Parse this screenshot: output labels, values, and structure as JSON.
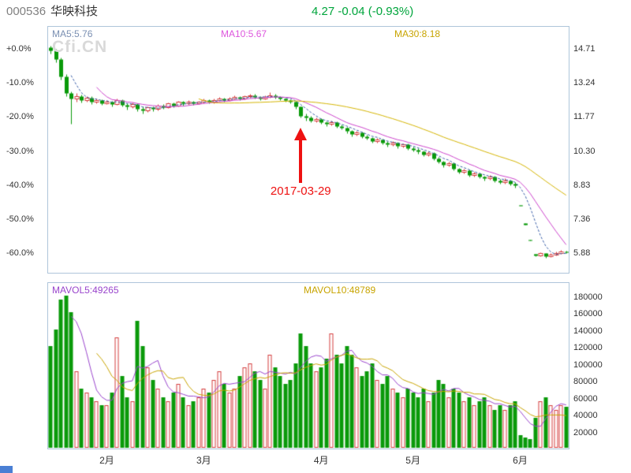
{
  "header": {
    "stock_code": "000536",
    "stock_name": "华映科技",
    "quote": "4.27 -0.04 (-0.93%)",
    "quote_color": "#00a53c"
  },
  "watermark": "Cfi.CN",
  "main_chart": {
    "ma_labels": [
      {
        "text": "MA5:5.76",
        "color": "#7a8fb2"
      },
      {
        "text": "MA10:5.67",
        "color": "#dd55dd"
      },
      {
        "text": "MA30:8.18",
        "color": "#c8a400"
      }
    ],
    "left_axis": [
      "+0.0%",
      "-10.0%",
      "-20.0%",
      "-30.0%",
      "-40.0%",
      "-50.0%",
      "-60.0%"
    ],
    "right_axis": [
      "14.71",
      "13.24",
      "11.77",
      "10.30",
      "8.83",
      "7.36",
      "5.88"
    ],
    "annotation": {
      "text": "2017-03-29",
      "color": "#ee1111"
    }
  },
  "volume_chart": {
    "mavol_labels": [
      {
        "text": "MAVOL5:49265",
        "color": "#9944cc"
      },
      {
        "text": "MAVOL10:48789",
        "color": "#c8a400"
      }
    ],
    "right_axis": [
      "180000",
      "160000",
      "140000",
      "120000",
      "100000",
      "80000",
      "60000",
      "40000",
      "20000"
    ]
  },
  "x_axis": {
    "labels": [
      "2月",
      "3月",
      "4月",
      "5月",
      "6月"
    ],
    "day_index": [
      11,
      30,
      53,
      71,
      92
    ]
  },
  "colors": {
    "up": "#d43c3c",
    "down": "#0a9a0a",
    "ma5": "#3a5fa8",
    "ma10": "#cc44cc",
    "ma30": "#d4b400",
    "mavol5": "#9944cc",
    "mavol10": "#c8a400"
  },
  "chart_data": {
    "type": "candlestick",
    "title": "000536 华映科技 daily chart, Jan–Jun 2017, percent change scale",
    "base_price": 14.71,
    "percent_axis": [
      0,
      -10,
      -20,
      -30,
      -40,
      -50,
      -60
    ],
    "price_axis": [
      14.71,
      13.24,
      11.77,
      10.3,
      8.83,
      7.36,
      5.88
    ],
    "volume_axis": [
      180000,
      160000,
      140000,
      120000,
      100000,
      80000,
      60000,
      40000,
      20000
    ],
    "annotation_day_index": 49,
    "columns": [
      "open_pct",
      "close_pct",
      "high_pct",
      "low_pct",
      "volume"
    ],
    "days": [
      [
        0.5,
        -0.5,
        1.0,
        -1.5,
        120000
      ],
      [
        -0.5,
        -3.0,
        0.0,
        -4.0,
        140000
      ],
      [
        -3.0,
        -8.0,
        -2.5,
        -9.0,
        175000
      ],
      [
        -8.0,
        -13.0,
        -7.5,
        -14.0,
        180000
      ],
      [
        -13.0,
        -14.5,
        -12.5,
        -22.0,
        160000
      ],
      [
        -14.5,
        -13.8,
        -13.0,
        -15.5,
        90000
      ],
      [
        -13.8,
        -15.0,
        -13.5,
        -15.8,
        70000
      ],
      [
        -15.0,
        -14.4,
        -13.8,
        -15.5,
        65000
      ],
      [
        -14.4,
        -15.5,
        -14.0,
        -16.2,
        60000
      ],
      [
        -15.5,
        -15.0,
        -14.5,
        -16.0,
        55000
      ],
      [
        -15.0,
        -16.0,
        -14.8,
        -16.5,
        50000
      ],
      [
        -16.0,
        -15.5,
        -15.0,
        -16.3,
        50000
      ],
      [
        -15.5,
        -16.2,
        -15.2,
        -16.8,
        65000
      ],
      [
        -16.2,
        -15.0,
        -14.6,
        -16.5,
        130000
      ],
      [
        -15.0,
        -16.5,
        -14.8,
        -17.0,
        85000
      ],
      [
        -16.5,
        -17.0,
        -16.0,
        -17.8,
        60000
      ],
      [
        -17.0,
        -16.2,
        -15.8,
        -17.4,
        55000
      ],
      [
        -16.2,
        -17.6,
        -16.0,
        -18.2,
        150000
      ],
      [
        -17.6,
        -18.0,
        -17.0,
        -19.0,
        120000
      ],
      [
        -18.0,
        -17.2,
        -16.8,
        -18.5,
        95000
      ],
      [
        -17.2,
        -17.6,
        -16.9,
        -18.2,
        80000
      ],
      [
        -17.6,
        -16.6,
        -16.2,
        -18.0,
        70000
      ],
      [
        -16.6,
        -17.1,
        -16.3,
        -17.6,
        60000
      ],
      [
        -17.1,
        -16.1,
        -15.8,
        -17.4,
        55000
      ],
      [
        -16.1,
        -16.6,
        -15.8,
        -17.1,
        65000
      ],
      [
        -16.6,
        -15.6,
        -15.2,
        -16.9,
        75000
      ],
      [
        -15.6,
        -16.1,
        -15.3,
        -16.6,
        60000
      ],
      [
        -16.1,
        -15.5,
        -15.1,
        -16.4,
        50000
      ],
      [
        -15.5,
        -16.0,
        -15.2,
        -16.5,
        55000
      ],
      [
        -16.0,
        -15.6,
        -15.2,
        -16.3,
        60000
      ],
      [
        -15.6,
        -15.1,
        -14.7,
        -15.9,
        70000
      ],
      [
        -15.1,
        -15.6,
        -14.9,
        -16.0,
        65000
      ],
      [
        -15.6,
        -15.0,
        -14.6,
        -15.9,
        80000
      ],
      [
        -15.0,
        -14.6,
        -14.2,
        -15.3,
        90000
      ],
      [
        -14.6,
        -15.1,
        -14.3,
        -15.5,
        75000
      ],
      [
        -15.1,
        -14.5,
        -14.1,
        -15.4,
        65000
      ],
      [
        -14.5,
        -14.1,
        -13.7,
        -14.8,
        70000
      ],
      [
        -14.1,
        -14.6,
        -13.9,
        -15.0,
        85000
      ],
      [
        -14.6,
        -14.0,
        -13.6,
        -14.9,
        95000
      ],
      [
        -14.0,
        -13.6,
        -13.1,
        -14.3,
        100000
      ],
      [
        -13.6,
        -14.1,
        -13.3,
        -14.5,
        90000
      ],
      [
        -14.1,
        -14.6,
        -13.8,
        -15.0,
        80000
      ],
      [
        -14.6,
        -14.1,
        -13.7,
        -14.9,
        70000
      ],
      [
        -14.1,
        -13.6,
        -12.7,
        -14.4,
        110000
      ],
      [
        -13.6,
        -14.1,
        -13.3,
        -14.6,
        95000
      ],
      [
        -14.1,
        -14.6,
        -13.9,
        -15.1,
        85000
      ],
      [
        -14.6,
        -15.1,
        -14.3,
        -15.6,
        75000
      ],
      [
        -15.1,
        -15.6,
        -14.8,
        -16.1,
        80000
      ],
      [
        -15.6,
        -17.0,
        -15.4,
        -17.5,
        100000
      ],
      [
        -17.0,
        -19.6,
        -16.8,
        -20.2,
        135000
      ],
      [
        -19.6,
        -20.1,
        -19.0,
        -21.0,
        120000
      ],
      [
        -20.1,
        -21.1,
        -19.8,
        -21.6,
        100000
      ],
      [
        -21.1,
        -20.6,
        -20.1,
        -21.5,
        90000
      ],
      [
        -20.6,
        -21.6,
        -20.3,
        -22.1,
        95000
      ],
      [
        -21.6,
        -22.1,
        -21.2,
        -22.7,
        105000
      ],
      [
        -22.1,
        -21.5,
        -21.0,
        -22.5,
        135000
      ],
      [
        -21.5,
        -22.6,
        -21.3,
        -23.1,
        110000
      ],
      [
        -22.6,
        -23.1,
        -22.2,
        -23.7,
        100000
      ],
      [
        -23.1,
        -24.1,
        -22.9,
        -24.7,
        120000
      ],
      [
        -24.1,
        -25.1,
        -23.8,
        -25.7,
        110000
      ],
      [
        -25.1,
        -24.6,
        -24.1,
        -25.5,
        95000
      ],
      [
        -24.6,
        -25.6,
        -24.3,
        -26.1,
        85000
      ],
      [
        -25.6,
        -26.1,
        -25.2,
        -26.7,
        90000
      ],
      [
        -26.1,
        -27.1,
        -25.9,
        -27.6,
        100000
      ],
      [
        -27.1,
        -26.6,
        -26.1,
        -27.5,
        80000
      ],
      [
        -26.6,
        -27.6,
        -26.3,
        -28.1,
        75000
      ],
      [
        -27.6,
        -28.1,
        -27.2,
        -28.7,
        85000
      ],
      [
        -28.1,
        -27.6,
        -27.1,
        -28.5,
        70000
      ],
      [
        -27.6,
        -28.6,
        -27.4,
        -29.1,
        65000
      ],
      [
        -28.6,
        -28.1,
        -27.7,
        -29.0,
        60000
      ],
      [
        -28.1,
        -29.1,
        -27.9,
        -29.6,
        70000
      ],
      [
        -29.1,
        -29.6,
        -28.7,
        -30.2,
        65000
      ],
      [
        -29.6,
        -30.1,
        -29.2,
        -30.7,
        60000
      ],
      [
        -30.1,
        -31.1,
        -29.9,
        -31.6,
        70000
      ],
      [
        -31.1,
        -30.6,
        -30.1,
        -31.5,
        55000
      ],
      [
        -30.6,
        -32.1,
        -30.4,
        -32.6,
        65000
      ],
      [
        -32.1,
        -33.1,
        -31.8,
        -33.7,
        80000
      ],
      [
        -33.1,
        -34.1,
        -32.9,
        -34.7,
        75000
      ],
      [
        -34.1,
        -33.6,
        -33.1,
        -34.5,
        60000
      ],
      [
        -33.6,
        -35.1,
        -33.4,
        -35.6,
        70000
      ],
      [
        -35.1,
        -36.1,
        -34.9,
        -36.7,
        65000
      ],
      [
        -36.1,
        -35.6,
        -35.1,
        -36.5,
        55000
      ],
      [
        -35.6,
        -37.1,
        -35.4,
        -37.6,
        60000
      ],
      [
        -37.1,
        -36.6,
        -36.1,
        -37.5,
        50000
      ],
      [
        -36.6,
        -37.6,
        -36.4,
        -38.1,
        55000
      ],
      [
        -37.6,
        -38.1,
        -37.2,
        -38.7,
        60000
      ],
      [
        -38.1,
        -37.6,
        -37.1,
        -38.5,
        50000
      ],
      [
        -37.6,
        -38.6,
        -37.4,
        -39.1,
        45000
      ],
      [
        -38.6,
        -39.1,
        -38.2,
        -39.7,
        50000
      ],
      [
        -39.1,
        -38.6,
        -38.1,
        -39.5,
        45000
      ],
      [
        -38.6,
        -39.6,
        -38.4,
        -40.1,
        50000
      ],
      [
        -39.6,
        -40.1,
        -39.2,
        -40.7,
        55000
      ],
      [
        -45.9,
        -46.2,
        -45.9,
        -46.2,
        15000
      ],
      [
        -51.3,
        -51.6,
        -51.3,
        -51.6,
        12000
      ],
      [
        -56.1,
        -56.4,
        -56.1,
        -56.4,
        10000
      ],
      [
        -60.3,
        -60.7,
        -60.2,
        -61.0,
        35000
      ],
      [
        -60.7,
        -60.1,
        -59.8,
        -61.0,
        55000
      ],
      [
        -60.1,
        -60.9,
        -59.9,
        -61.3,
        60000
      ],
      [
        -60.9,
        -60.4,
        -60.0,
        -61.1,
        50000
      ],
      [
        -60.4,
        -59.9,
        -59.5,
        -60.7,
        45000
      ],
      [
        -59.9,
        -59.5,
        -59.1,
        -60.2,
        50000
      ],
      [
        -59.5,
        -59.8,
        -59.2,
        -60.1,
        48000
      ]
    ]
  }
}
